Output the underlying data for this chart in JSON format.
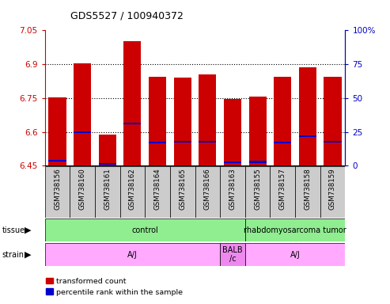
{
  "title": "GDS5527 / 100940372",
  "samples": [
    "GSM738156",
    "GSM738160",
    "GSM738161",
    "GSM738162",
    "GSM738164",
    "GSM738165",
    "GSM738166",
    "GSM738163",
    "GSM738155",
    "GSM738157",
    "GSM738158",
    "GSM738159"
  ],
  "bar_tops": [
    6.754,
    6.905,
    6.587,
    7.003,
    6.843,
    6.84,
    6.855,
    6.745,
    6.757,
    6.843,
    6.888,
    6.843
  ],
  "blue_values": [
    6.468,
    6.595,
    6.453,
    6.634,
    6.548,
    6.553,
    6.553,
    6.46,
    6.463,
    6.548,
    6.578,
    6.553
  ],
  "ymin": 6.45,
  "ymax": 7.05,
  "yticks_left": [
    6.45,
    6.6,
    6.75,
    6.9,
    7.05
  ],
  "yticks_right_vals": [
    0,
    25,
    50,
    75,
    100
  ],
  "yticks_right_labels": [
    "0",
    "25",
    "50",
    "75",
    "100%"
  ],
  "bar_color": "#cc0000",
  "blue_color": "#0000cc",
  "bar_width": 0.7,
  "tissue_groups": [
    {
      "label": "control",
      "start": 0,
      "end": 8,
      "color": "#90ee90"
    },
    {
      "label": "rhabdomyosarcoma tumor",
      "start": 8,
      "end": 12,
      "color": "#90ee90"
    }
  ],
  "strain_groups": [
    {
      "label": "A/J",
      "start": 0,
      "end": 7,
      "color": "#ffaaff"
    },
    {
      "label": "BALB\n/c",
      "start": 7,
      "end": 8,
      "color": "#ee88ee"
    },
    {
      "label": "A/J",
      "start": 8,
      "end": 12,
      "color": "#ffaaff"
    }
  ],
  "legend_red": "transformed count",
  "legend_blue": "percentile rank within the sample",
  "background_color": "#ffffff",
  "tick_bg": "#cccccc",
  "left_axis_color": "#cc0000",
  "right_axis_color": "#0000cc"
}
